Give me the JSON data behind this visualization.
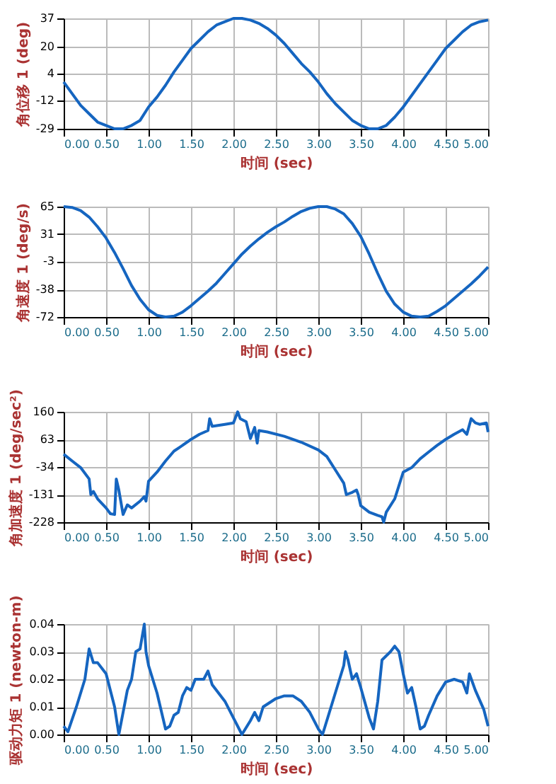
{
  "chart_data": [
    {
      "type": "line",
      "xlabel": "时间 (sec)",
      "ylabel": "角位移 1 (deg)",
      "xlim": [
        0,
        5
      ],
      "ylim": [
        -29,
        37
      ],
      "grid": true,
      "xticks": [
        {
          "value": 0,
          "label": "0.00"
        },
        {
          "value": 0.5,
          "label": "0.50"
        },
        {
          "value": 1,
          "label": "1.00"
        },
        {
          "value": 1.5,
          "label": "1.50"
        },
        {
          "value": 2,
          "label": "2.00"
        },
        {
          "value": 2.5,
          "label": "2.50"
        },
        {
          "value": 3,
          "label": "3.00"
        },
        {
          "value": 3.5,
          "label": "3.50"
        },
        {
          "value": 4,
          "label": "4.00"
        },
        {
          "value": 4.5,
          "label": "4.50"
        },
        {
          "value": 5,
          "label": "5.00"
        }
      ],
      "yticks": [
        -29,
        -12,
        4,
        20,
        37
      ],
      "x": [
        0,
        0.1,
        0.2,
        0.3,
        0.4,
        0.5,
        0.6,
        0.7,
        0.8,
        0.9,
        1.0,
        1.1,
        1.2,
        1.3,
        1.4,
        1.5,
        1.6,
        1.7,
        1.8,
        1.9,
        2.0,
        2.1,
        2.2,
        2.3,
        2.4,
        2.5,
        2.6,
        2.7,
        2.8,
        2.9,
        3.0,
        3.1,
        3.2,
        3.3,
        3.4,
        3.5,
        3.6,
        3.7,
        3.8,
        3.9,
        4.0,
        4.1,
        4.2,
        4.3,
        4.4,
        4.5,
        4.6,
        4.7,
        4.8,
        4.9,
        5.0
      ],
      "series": [
        {
          "color": "#1565c0",
          "values": [
            -1,
            -8,
            -15,
            -20,
            -25,
            -27,
            -29,
            -29,
            -27,
            -24,
            -16,
            -10,
            -3,
            5,
            12,
            19,
            24,
            29,
            33,
            35,
            37,
            37,
            36,
            34,
            31,
            27,
            22,
            16,
            10,
            5,
            -1,
            -8,
            -14,
            -19,
            -24,
            -27,
            -29,
            -29,
            -27,
            -22,
            -16,
            -9,
            -2,
            5,
            12,
            19,
            24,
            29,
            33,
            35,
            36
          ]
        }
      ]
    },
    {
      "type": "line",
      "xlabel": "时间 (sec)",
      "ylabel": "角速度 1 (deg/s)",
      "xlim": [
        0,
        5
      ],
      "ylim": [
        -72,
        65
      ],
      "grid": true,
      "xticks": [
        {
          "value": 0,
          "label": "0.00"
        },
        {
          "value": 0.5,
          "label": "0.50"
        },
        {
          "value": 1,
          "label": "1.00"
        },
        {
          "value": 1.5,
          "label": "1.50"
        },
        {
          "value": 2,
          "label": "2.00"
        },
        {
          "value": 2.5,
          "label": "2.50"
        },
        {
          "value": 3,
          "label": "3.00"
        },
        {
          "value": 3.5,
          "label": "3.50"
        },
        {
          "value": 4,
          "label": "4.00"
        },
        {
          "value": 4.5,
          "label": "4.50"
        },
        {
          "value": 5,
          "label": "5.00"
        }
      ],
      "yticks": [
        -72,
        -38,
        -3,
        31,
        65
      ],
      "x": [
        0,
        0.1,
        0.2,
        0.3,
        0.4,
        0.5,
        0.6,
        0.7,
        0.8,
        0.9,
        1.0,
        1.1,
        1.2,
        1.3,
        1.4,
        1.5,
        1.6,
        1.7,
        1.8,
        1.9,
        2.0,
        2.1,
        2.2,
        2.3,
        2.4,
        2.5,
        2.6,
        2.7,
        2.8,
        2.9,
        3.0,
        3.1,
        3.2,
        3.3,
        3.4,
        3.5,
        3.6,
        3.7,
        3.8,
        3.9,
        4.0,
        4.1,
        4.2,
        4.3,
        4.4,
        4.5,
        4.6,
        4.7,
        4.8,
        4.9,
        5.0
      ],
      "series": [
        {
          "color": "#1565c0",
          "values": [
            65,
            64,
            60,
            52,
            40,
            26,
            8,
            -12,
            -33,
            -50,
            -63,
            -70,
            -72,
            -71,
            -66,
            -58,
            -49,
            -40,
            -30,
            -18,
            -6,
            6,
            16,
            25,
            33,
            40,
            46,
            53,
            59,
            63,
            65,
            65,
            62,
            56,
            44,
            28,
            6,
            -18,
            -40,
            -56,
            -66,
            -71,
            -72,
            -71,
            -65,
            -58,
            -49,
            -40,
            -31,
            -21,
            -10
          ]
        }
      ]
    },
    {
      "type": "line",
      "xlabel": "时间 (sec)",
      "ylabel": "角加速度 1 (deg/sec²)",
      "xlim": [
        0,
        5
      ],
      "ylim": [
        -228,
        160
      ],
      "grid": true,
      "xticks": [
        {
          "value": 0,
          "label": "0.00"
        },
        {
          "value": 0.5,
          "label": "0.50"
        },
        {
          "value": 1,
          "label": "1.00"
        },
        {
          "value": 1.5,
          "label": "1.50"
        },
        {
          "value": 2,
          "label": "2.00"
        },
        {
          "value": 2.5,
          "label": "2.50"
        },
        {
          "value": 3,
          "label": "3.00"
        },
        {
          "value": 3.5,
          "label": "3.50"
        },
        {
          "value": 4,
          "label": "4.00"
        },
        {
          "value": 4.5,
          "label": "4.50"
        },
        {
          "value": 5,
          "label": "5.00"
        }
      ],
      "yticks": [
        -228,
        -131,
        -34,
        63,
        160
      ],
      "x": [
        0,
        0.1,
        0.2,
        0.3,
        0.32,
        0.35,
        0.4,
        0.5,
        0.55,
        0.6,
        0.62,
        0.65,
        0.7,
        0.75,
        0.8,
        0.9,
        0.95,
        0.97,
        1.0,
        1.1,
        1.2,
        1.3,
        1.4,
        1.5,
        1.6,
        1.7,
        1.72,
        1.75,
        1.9,
        2.0,
        2.05,
        2.08,
        2.15,
        2.2,
        2.25,
        2.28,
        2.3,
        2.4,
        2.6,
        2.8,
        3.0,
        3.1,
        3.2,
        3.3,
        3.33,
        3.4,
        3.45,
        3.47,
        3.5,
        3.6,
        3.7,
        3.75,
        3.77,
        3.8,
        3.9,
        4.0,
        4.05,
        4.1,
        4.2,
        4.3,
        4.4,
        4.5,
        4.6,
        4.7,
        4.75,
        4.8,
        4.85,
        4.9,
        4.98,
        5.0
      ],
      "series": [
        {
          "color": "#1565c0",
          "values": [
            11,
            -13,
            -36,
            -76,
            -131,
            -120,
            -146,
            -178,
            -198,
            -201,
            -76,
            -115,
            -201,
            -167,
            -178,
            -154,
            -138,
            -154,
            -84,
            -52,
            -13,
            22,
            42,
            63,
            81,
            94,
            136,
            109,
            116,
            121,
            160,
            136,
            125,
            66,
            105,
            50,
            94,
            89,
            74,
            53,
            26,
            3,
            -44,
            -91,
            -131,
            -123,
            -115,
            -131,
            -170,
            -193,
            -204,
            -209,
            -228,
            -193,
            -146,
            -52,
            -44,
            -36,
            -5,
            19,
            42,
            63,
            81,
            97,
            81,
            136,
            121,
            116,
            121,
            89
          ]
        }
      ]
    },
    {
      "type": "line",
      "xlabel": "时间 (sec)",
      "ylabel": "驱动力矩 1 (newton-m)",
      "xlim": [
        0,
        5
      ],
      "ylim": [
        0,
        0.04
      ],
      "grid": true,
      "xticks": [
        {
          "value": 0,
          "label": "0.00"
        },
        {
          "value": 0.5,
          "label": "0.50"
        },
        {
          "value": 1,
          "label": "1.00"
        },
        {
          "value": 1.5,
          "label": "1.50"
        },
        {
          "value": 2,
          "label": "2.00"
        },
        {
          "value": 2.5,
          "label": "2.50"
        },
        {
          "value": 3,
          "label": "3.00"
        },
        {
          "value": 3.5,
          "label": "3.50"
        },
        {
          "value": 4,
          "label": "4.00"
        },
        {
          "value": 4.5,
          "label": "4.50"
        },
        {
          "value": 5,
          "label": "5.00"
        }
      ],
      "yticks": [
        {
          "value": 0,
          "label": "0.00"
        },
        {
          "value": 0.01,
          "label": "0.01"
        },
        {
          "value": 0.02,
          "label": "0.02"
        },
        {
          "value": 0.03,
          "label": "0.03"
        },
        {
          "value": 0.04,
          "label": "0.04"
        }
      ],
      "x": [
        0,
        0.05,
        0.15,
        0.25,
        0.3,
        0.35,
        0.4,
        0.5,
        0.6,
        0.65,
        0.7,
        0.75,
        0.8,
        0.85,
        0.9,
        0.95,
        0.97,
        1.0,
        1.1,
        1.2,
        1.25,
        1.3,
        1.35,
        1.4,
        1.45,
        1.5,
        1.55,
        1.65,
        1.7,
        1.75,
        1.9,
        2.0,
        2.1,
        2.2,
        2.25,
        2.3,
        2.35,
        2.5,
        2.6,
        2.7,
        2.8,
        2.9,
        3.0,
        3.05,
        3.1,
        3.2,
        3.3,
        3.32,
        3.35,
        3.4,
        3.45,
        3.5,
        3.6,
        3.65,
        3.7,
        3.75,
        3.85,
        3.9,
        3.95,
        4.0,
        4.05,
        4.1,
        4.15,
        4.2,
        4.25,
        4.3,
        4.4,
        4.5,
        4.6,
        4.7,
        4.75,
        4.78,
        4.85,
        4.95,
        5.0
      ],
      "series": [
        {
          "color": "#1565c0",
          "values": [
            0.003,
            0.001,
            0.01,
            0.02,
            0.031,
            0.026,
            0.026,
            0.022,
            0.01,
            0.0,
            0.008,
            0.016,
            0.02,
            0.03,
            0.031,
            0.04,
            0.03,
            0.025,
            0.015,
            0.002,
            0.003,
            0.007,
            0.008,
            0.014,
            0.017,
            0.016,
            0.02,
            0.02,
            0.023,
            0.018,
            0.012,
            0.006,
            0.0,
            0.005,
            0.008,
            0.005,
            0.01,
            0.013,
            0.014,
            0.014,
            0.012,
            0.008,
            0.002,
            0.0,
            0.005,
            0.015,
            0.025,
            0.03,
            0.027,
            0.02,
            0.022,
            0.017,
            0.006,
            0.002,
            0.012,
            0.027,
            0.03,
            0.032,
            0.03,
            0.022,
            0.015,
            0.017,
            0.01,
            0.002,
            0.003,
            0.007,
            0.014,
            0.019,
            0.02,
            0.019,
            0.015,
            0.022,
            0.016,
            0.009,
            0.003
          ]
        }
      ]
    }
  ]
}
